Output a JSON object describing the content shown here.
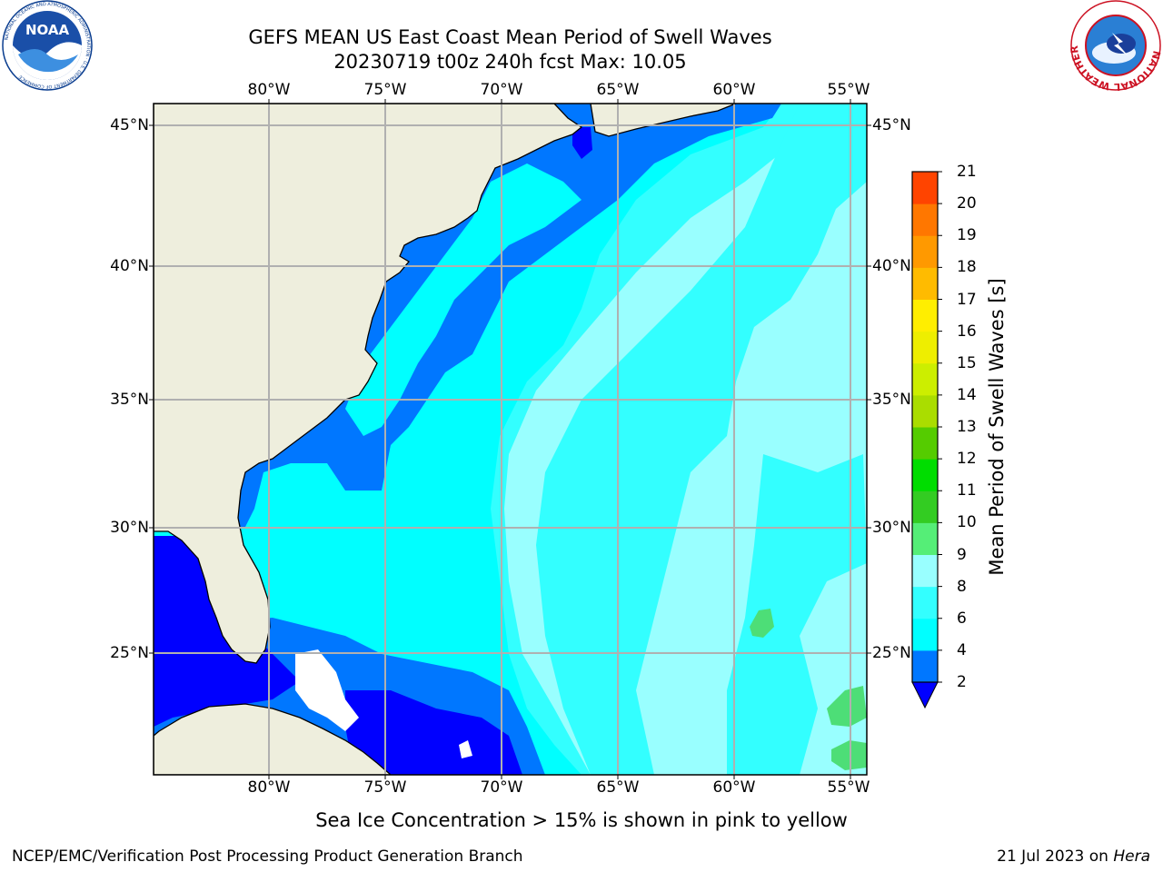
{
  "title": {
    "line1": "GEFS MEAN US East Coast Mean Period of Swell Waves",
    "line2": "20230719 t00z 240h fcst   Max: 10.05"
  },
  "map": {
    "lon_ticks": [
      "80°W",
      "75°W",
      "70°W",
      "65°W",
      "60°W",
      "55°W"
    ],
    "lat_ticks": [
      "45°N",
      "40°N",
      "35°N",
      "30°N",
      "25°N"
    ],
    "colors": {
      "land": "#eeeedd",
      "ocean_light": "#99ffff",
      "ocean_mid": "#33ffff",
      "ocean_cyan": "#00ffff",
      "ocean_blue": "#0077ff",
      "ocean_dark": "#0000ff",
      "sea_green": "#4dde77",
      "grid": "#b0b0b0"
    }
  },
  "colorbar": {
    "title": "Mean Period of Swell Waves [s]",
    "levels": [
      "2",
      "4",
      "6",
      "8",
      "9",
      "10",
      "11",
      "12",
      "13",
      "14",
      "15",
      "16",
      "17",
      "18",
      "19",
      "20",
      "21"
    ],
    "colors": [
      "#0077ff",
      "#00ffff",
      "#33ffff",
      "#99ffff",
      "#55ee77",
      "#33cc22",
      "#00dd00",
      "#55cc00",
      "#aadd00",
      "#ccee00",
      "#eeee00",
      "#ffee00",
      "#ffbb00",
      "#ff9900",
      "#ff7700",
      "#ff4400",
      "#ff2200",
      "#ff0000"
    ],
    "under_color": "#0000ff"
  },
  "note": "Sea Ice Concentration > 15% is shown in pink to yellow",
  "footer": {
    "left": "NCEP/EMC/Verification Post Processing Product Generation Branch",
    "right_date": "21 Jul 2023 on ",
    "right_host": "Hera"
  },
  "logos": {
    "noaa": "NOAA",
    "noaa_ring": "NATIONAL OCEANIC AND ATMOSPHERIC ADMINISTRATION · U.S. DEPARTMENT OF COMMERCE",
    "nws_ring": "NATIONAL WEATHER SERVICE"
  }
}
